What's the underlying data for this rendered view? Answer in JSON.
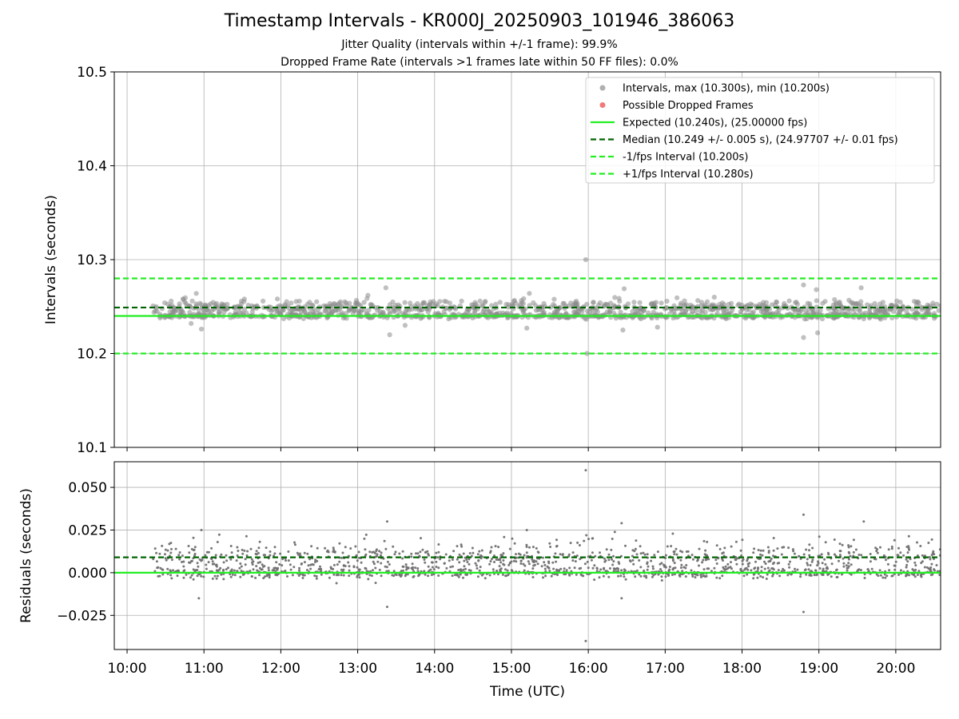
{
  "figure": {
    "title": "Timestamp Intervals - KR000J_20250903_101946_386063",
    "subtitle_1": "Jitter Quality (intervals within +/-1 frame): 99.9%",
    "subtitle_2": "Dropped Frame Rate (intervals >1 frames late within 50 FF files): 0.0%"
  },
  "chart_data": [
    {
      "type": "scatter",
      "panel": "intervals",
      "ylabel": "Intervals (seconds)",
      "xlabel": "",
      "x_is_time_of_day": true,
      "xlim": [
        "09:50",
        "20:35"
      ],
      "ylim": [
        10.1,
        10.5
      ],
      "yticks": [
        10.1,
        10.2,
        10.3,
        10.4,
        10.5
      ],
      "ytick_labels": [
        "10.1",
        "10.2",
        "10.3",
        "10.4",
        "10.5"
      ],
      "grid": true,
      "legend_position": "top-right",
      "legend": [
        {
          "label": "Intervals, max (10.300s), min (10.200s)",
          "kind": "dot",
          "color": "#a6a6a6"
        },
        {
          "label": "Possible Dropped Frames",
          "kind": "dot",
          "color": "#f06a6a"
        },
        {
          "label": "Expected (10.240s), (25.00000 fps)",
          "kind": "solid",
          "color": "#22ee22"
        },
        {
          "label": "Median (10.249 +/- 0.005 s), (24.97707 +/- 0.01 fps)",
          "kind": "dashed",
          "color": "#006400"
        },
        {
          "label": "-1/fps Interval (10.200s)",
          "kind": "dashed",
          "color": "#22ee22"
        },
        {
          "label": "+1/fps Interval (10.280s)",
          "kind": "dashed",
          "color": "#22ee22"
        }
      ],
      "reference_lines": [
        {
          "name": "Expected",
          "y": 10.24,
          "style": "solid",
          "color": "#22ee22"
        },
        {
          "name": "Median",
          "y": 10.249,
          "style": "dashed",
          "color": "#006400"
        },
        {
          "name": "-1/fps Interval",
          "y": 10.2,
          "style": "dashed",
          "color": "#22ee22"
        },
        {
          "name": "+1/fps Interval",
          "y": 10.28,
          "style": "dashed",
          "color": "#22ee22"
        }
      ],
      "series": [
        {
          "name": "Intervals",
          "color": "#8c8c8c",
          "time_range": [
            "10:20",
            "20:35"
          ],
          "typical_values": [
            10.24,
            10.249
          ],
          "spread": 0.005,
          "max": 10.3,
          "min": 10.2,
          "notable_points": [
            {
              "x": "10:54",
              "y": 10.264
            },
            {
              "x": "10:50",
              "y": 10.232
            },
            {
              "x": "10:58",
              "y": 10.226
            },
            {
              "x": "13:08",
              "y": 10.262
            },
            {
              "x": "13:22",
              "y": 10.27
            },
            {
              "x": "13:25",
              "y": 10.22
            },
            {
              "x": "13:37",
              "y": 10.23
            },
            {
              "x": "15:14",
              "y": 10.264
            },
            {
              "x": "15:12",
              "y": 10.227
            },
            {
              "x": "15:58",
              "y": 10.3
            },
            {
              "x": "15:59",
              "y": 10.2
            },
            {
              "x": "16:28",
              "y": 10.269
            },
            {
              "x": "16:27",
              "y": 10.225
            },
            {
              "x": "16:54",
              "y": 10.228
            },
            {
              "x": "18:48",
              "y": 10.273
            },
            {
              "x": "18:48",
              "y": 10.217
            },
            {
              "x": "18:58",
              "y": 10.268
            },
            {
              "x": "18:59",
              "y": 10.222
            },
            {
              "x": "19:33",
              "y": 10.27
            },
            {
              "x": "19:35",
              "y": 10.237
            }
          ]
        }
      ]
    },
    {
      "type": "scatter",
      "panel": "residuals",
      "ylabel": "Residuals (seconds)",
      "xlabel": "Time (UTC)",
      "x_is_time_of_day": true,
      "xlim": [
        "09:50",
        "20:35"
      ],
      "xticks": [
        "10:00",
        "11:00",
        "12:00",
        "13:00",
        "14:00",
        "15:00",
        "16:00",
        "17:00",
        "18:00",
        "19:00",
        "20:00"
      ],
      "ylim": [
        -0.045,
        0.065
      ],
      "yticks": [
        -0.025,
        0.0,
        0.025,
        0.05
      ],
      "ytick_labels": [
        "−0.025",
        "0.000",
        "0.025",
        "0.050"
      ],
      "grid": true,
      "reference_lines": [
        {
          "name": "Median residual",
          "y": 0.009,
          "style": "dashed",
          "color": "#006400"
        },
        {
          "name": "Expected",
          "y": 0.0,
          "style": "solid",
          "color": "#22ee22"
        }
      ],
      "series": [
        {
          "name": "Residuals",
          "color": "#707070",
          "time_range": [
            "10:20",
            "20:35"
          ],
          "typical_values": [
            0.0,
            0.009
          ],
          "spread": 0.006,
          "max": 0.06,
          "min": -0.04,
          "notable_points": [
            {
              "x": "15:58",
              "y": 0.06
            },
            {
              "x": "15:58",
              "y": -0.04
            },
            {
              "x": "13:23",
              "y": 0.03
            },
            {
              "x": "13:23",
              "y": -0.02
            },
            {
              "x": "16:26",
              "y": 0.029
            },
            {
              "x": "18:48",
              "y": 0.034
            },
            {
              "x": "18:48",
              "y": -0.023
            },
            {
              "x": "19:35",
              "y": 0.03
            },
            {
              "x": "10:58",
              "y": 0.025
            },
            {
              "x": "10:56",
              "y": -0.015
            },
            {
              "x": "15:12",
              "y": 0.025
            },
            {
              "x": "16:26",
              "y": -0.015
            },
            {
              "x": "13:14",
              "y": -0.006
            },
            {
              "x": "19:59",
              "y": 0.019
            }
          ]
        }
      ]
    }
  ]
}
